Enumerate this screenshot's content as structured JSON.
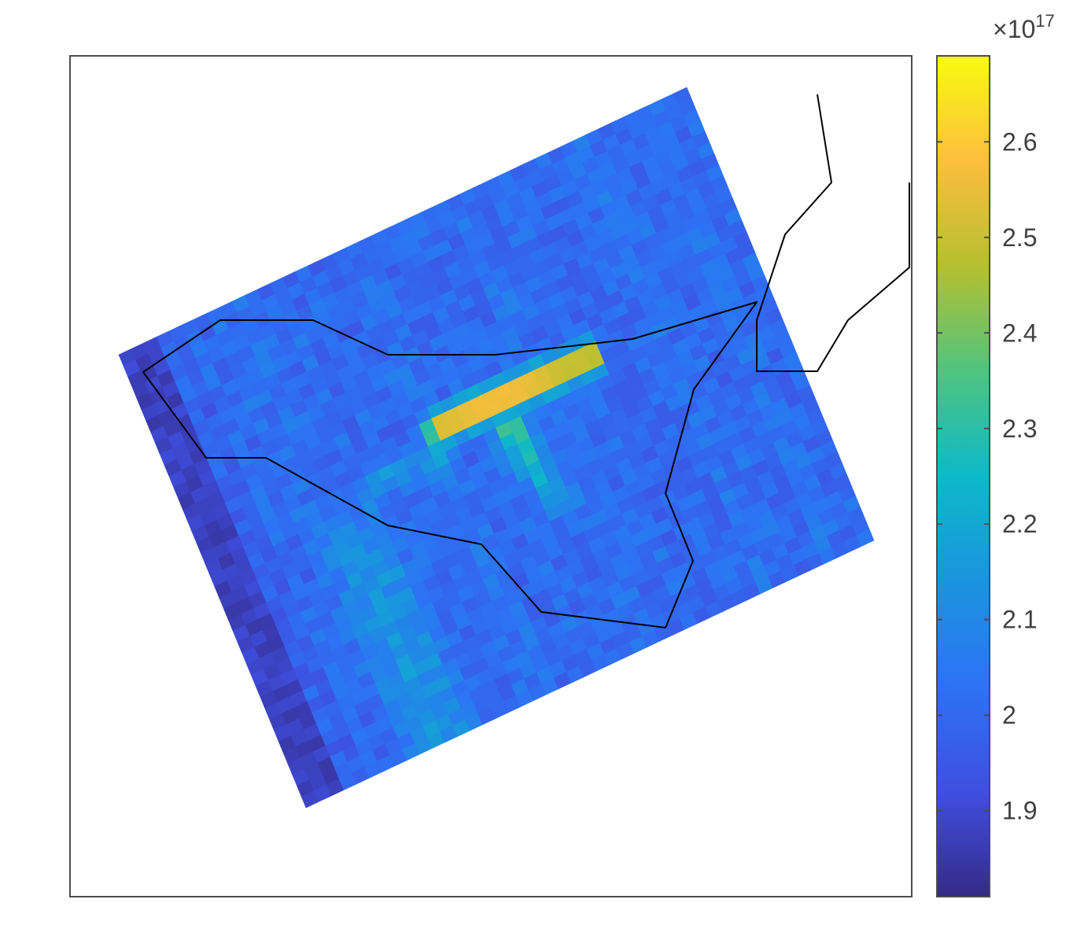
{
  "chart_data": {
    "type": "heatmap",
    "title": "",
    "xlabel": "",
    "ylabel": "",
    "colormap": "parula",
    "grid": false,
    "axis_ticks_visible": false,
    "footprint": {
      "grid_rows": 41,
      "grid_cols": 45,
      "rotation_deg_ccw": 26,
      "regions": [
        {
          "name": "background",
          "approx_value": 2.01
        },
        {
          "name": "high-value streak",
          "approx_value": 2.66
        },
        {
          "name": "secondary branch",
          "approx_value": 2.35
        },
        {
          "name": "left edge",
          "approx_value": 1.88
        },
        {
          "name": "left interior band",
          "approx_value": 2.13
        }
      ]
    },
    "outlines": [
      "region boundary polygon",
      "coastline fragment"
    ],
    "colorbar": {
      "range": [
        1.81,
        2.69
      ],
      "ticks": [
        1.9,
        2,
        2.1,
        2.2,
        2.3,
        2.4,
        2.5,
        2.6
      ],
      "tick_labels": [
        "1.9",
        "2",
        "2.1",
        "2.2",
        "2.3",
        "2.4",
        "2.5",
        "2.6"
      ],
      "multiplier_base": "×10",
      "multiplier_exponent": "17"
    }
  }
}
